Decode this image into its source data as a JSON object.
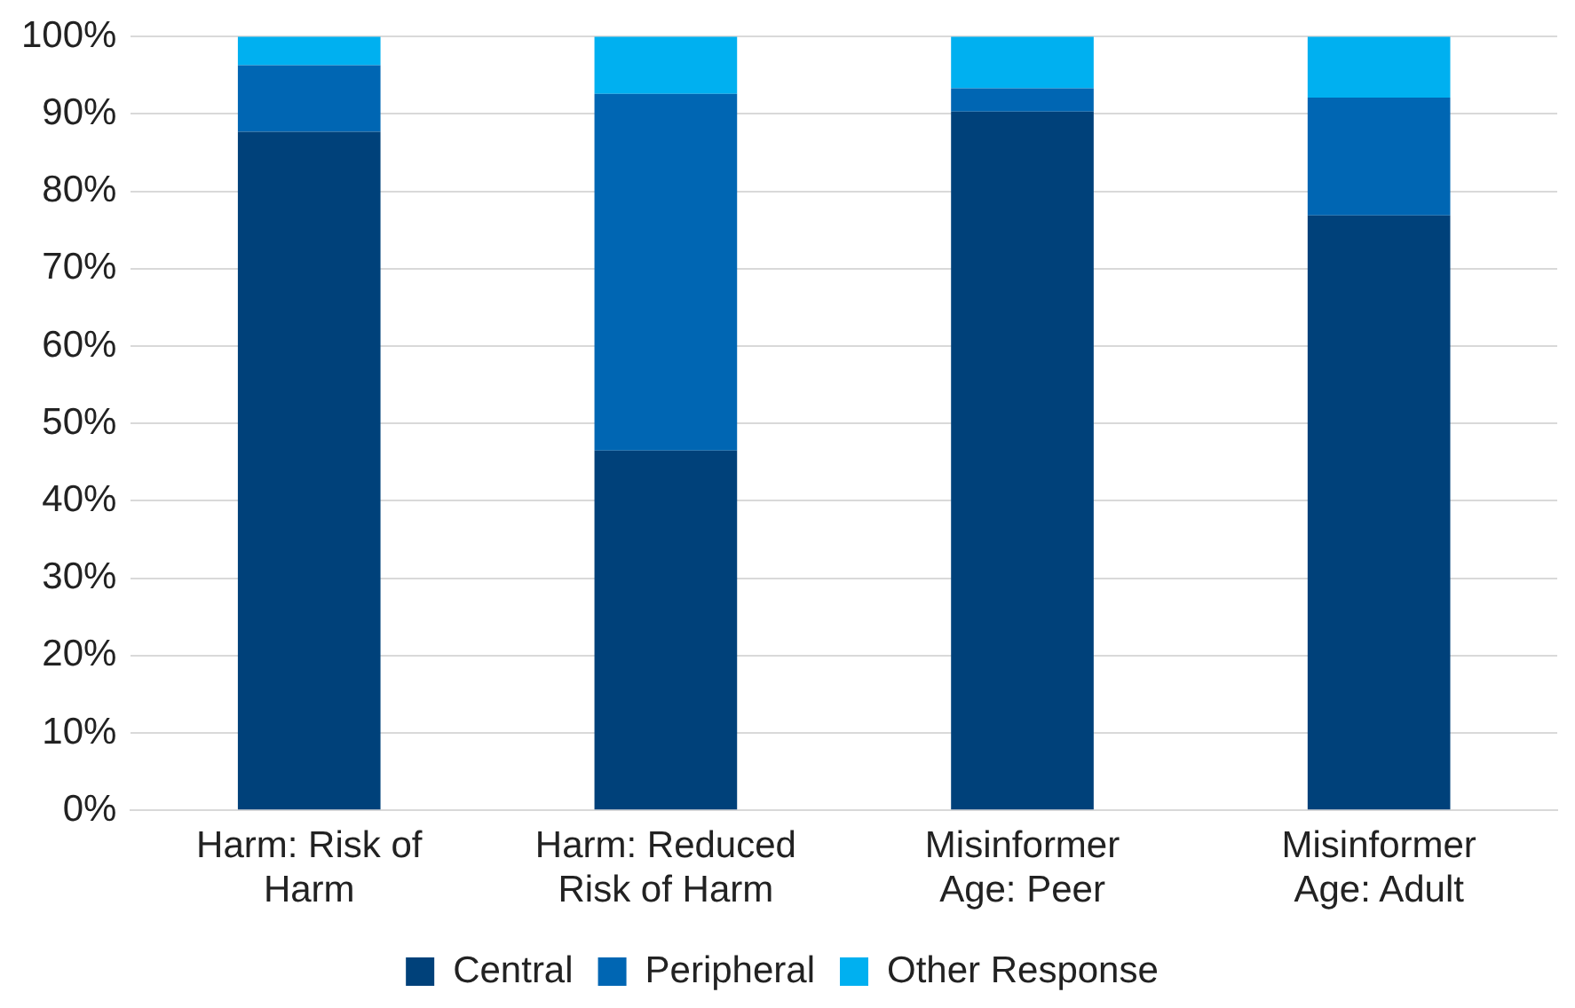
{
  "chart_data": {
    "type": "bar",
    "stacked": true,
    "categories": [
      "Harm: Risk of Harm",
      "Harm: Reduced Risk of Harm",
      "Misinformer Age: Peer",
      "Misinformer Age: Adult"
    ],
    "series": [
      {
        "name": "Central",
        "color": "#00417a",
        "values": [
          87.7,
          46.5,
          90.3,
          76.9
        ]
      },
      {
        "name": "Peripheral",
        "color": "#0066b3",
        "values": [
          8.6,
          46.1,
          3.0,
          15.2
        ]
      },
      {
        "name": "Other Response",
        "color": "#00b0f0",
        "values": [
          3.7,
          7.4,
          6.7,
          7.9
        ]
      }
    ],
    "ylim": [
      0,
      100
    ],
    "yticks": [
      {
        "value": 0,
        "label": "0%"
      },
      {
        "value": 10,
        "label": "10%"
      },
      {
        "value": 20,
        "label": "20%"
      },
      {
        "value": 30,
        "label": "30%"
      },
      {
        "value": 40,
        "label": "40%"
      },
      {
        "value": 50,
        "label": "50%"
      },
      {
        "value": 60,
        "label": "60%"
      },
      {
        "value": 70,
        "label": "70%"
      },
      {
        "value": 80,
        "label": "80%"
      },
      {
        "value": 90,
        "label": "90%"
      },
      {
        "value": 100,
        "label": "100%"
      }
    ],
    "grid": "y",
    "legend": "bottom"
  }
}
